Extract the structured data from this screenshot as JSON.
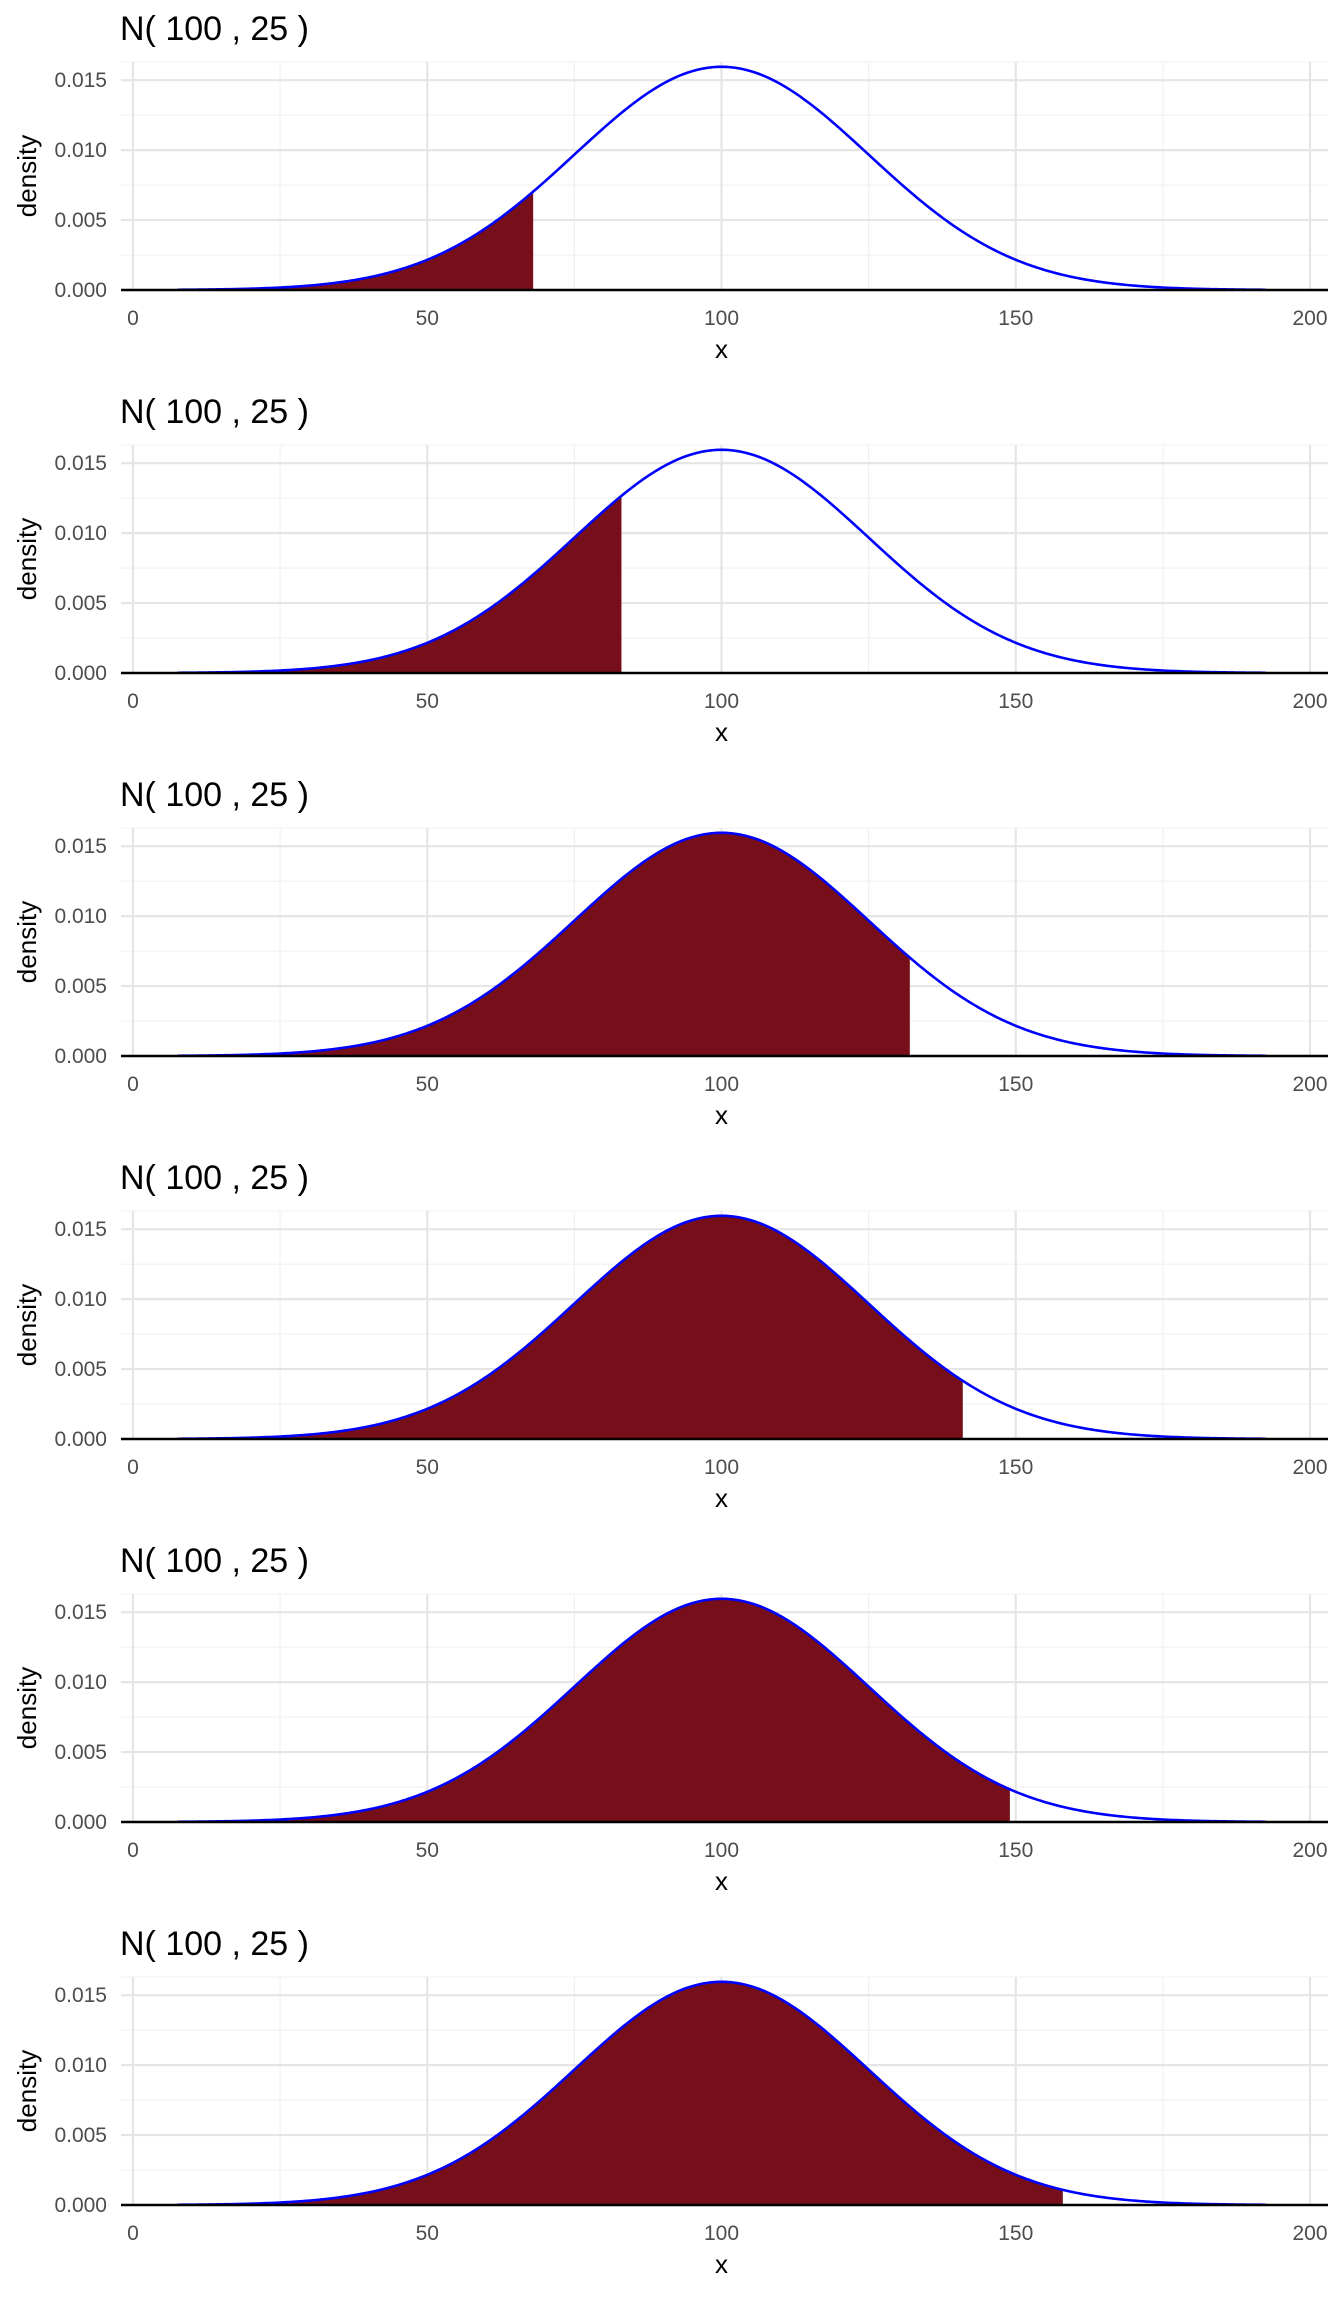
{
  "colors": {
    "curve": "#0000ff",
    "fill": "#760f19",
    "grid_major": "#e5e5e5",
    "grid_minor": "#f0f0f0",
    "baseline": "#000000",
    "tick_text": "#4d4d4d"
  },
  "chart_data": [
    {
      "type": "area",
      "title": "N( 100 , 25 )",
      "xlabel": "x",
      "ylabel": "density",
      "distribution": "normal",
      "mean": 100,
      "sd": 25,
      "curve_x_range": [
        7.5,
        192.5
      ],
      "shaded_x_range": [
        7.5,
        68
      ],
      "xlim": [
        0,
        203
      ],
      "ylim": [
        0,
        0.0163
      ],
      "xticks": [
        0,
        50,
        100,
        150,
        200
      ],
      "xtick_labels": [
        "0",
        "50",
        "100",
        "150",
        "200"
      ],
      "yticks": [
        0,
        0.005,
        0.01,
        0.015
      ],
      "ytick_labels": [
        "0.000",
        "0.005",
        "0.010",
        "0.015"
      ],
      "grid": true
    },
    {
      "type": "area",
      "title": "N( 100 , 25 )",
      "xlabel": "x",
      "ylabel": "density",
      "distribution": "normal",
      "mean": 100,
      "sd": 25,
      "curve_x_range": [
        7.5,
        192.5
      ],
      "shaded_x_range": [
        7.5,
        83
      ],
      "xlim": [
        0,
        203
      ],
      "ylim": [
        0,
        0.0163
      ],
      "xticks": [
        0,
        50,
        100,
        150,
        200
      ],
      "xtick_labels": [
        "0",
        "50",
        "100",
        "150",
        "200"
      ],
      "yticks": [
        0,
        0.005,
        0.01,
        0.015
      ],
      "ytick_labels": [
        "0.000",
        "0.005",
        "0.010",
        "0.015"
      ],
      "grid": true
    },
    {
      "type": "area",
      "title": "N( 100 , 25 )",
      "xlabel": "x",
      "ylabel": "density",
      "distribution": "normal",
      "mean": 100,
      "sd": 25,
      "curve_x_range": [
        7.5,
        192.5
      ],
      "shaded_x_range": [
        7.5,
        132
      ],
      "xlim": [
        0,
        203
      ],
      "ylim": [
        0,
        0.0163
      ],
      "xticks": [
        0,
        50,
        100,
        150,
        200
      ],
      "xtick_labels": [
        "0",
        "50",
        "100",
        "150",
        "200"
      ],
      "yticks": [
        0,
        0.005,
        0.01,
        0.015
      ],
      "ytick_labels": [
        "0.000",
        "0.005",
        "0.010",
        "0.015"
      ],
      "grid": true
    },
    {
      "type": "area",
      "title": "N( 100 , 25 )",
      "xlabel": "x",
      "ylabel": "density",
      "distribution": "normal",
      "mean": 100,
      "sd": 25,
      "curve_x_range": [
        7.5,
        192.5
      ],
      "shaded_x_range": [
        7.5,
        141
      ],
      "xlim": [
        0,
        203
      ],
      "ylim": [
        0,
        0.0163
      ],
      "xticks": [
        0,
        50,
        100,
        150,
        200
      ],
      "xtick_labels": [
        "0",
        "50",
        "100",
        "150",
        "200"
      ],
      "yticks": [
        0,
        0.005,
        0.01,
        0.015
      ],
      "ytick_labels": [
        "0.000",
        "0.005",
        "0.010",
        "0.015"
      ],
      "grid": true
    },
    {
      "type": "area",
      "title": "N( 100 , 25 )",
      "xlabel": "x",
      "ylabel": "density",
      "distribution": "normal",
      "mean": 100,
      "sd": 25,
      "curve_x_range": [
        7.5,
        192.5
      ],
      "shaded_x_range": [
        7.5,
        149
      ],
      "xlim": [
        0,
        203
      ],
      "ylim": [
        0,
        0.0163
      ],
      "xticks": [
        0,
        50,
        100,
        150,
        200
      ],
      "xtick_labels": [
        "0",
        "50",
        "100",
        "150",
        "200"
      ],
      "yticks": [
        0,
        0.005,
        0.01,
        0.015
      ],
      "ytick_labels": [
        "0.000",
        "0.005",
        "0.010",
        "0.015"
      ],
      "grid": true
    },
    {
      "type": "area",
      "title": "N( 100 , 25 )",
      "xlabel": "x",
      "ylabel": "density",
      "distribution": "normal",
      "mean": 100,
      "sd": 25,
      "curve_x_range": [
        7.5,
        192.5
      ],
      "shaded_x_range": [
        7.5,
        158
      ],
      "xlim": [
        0,
        203
      ],
      "ylim": [
        0,
        0.0163
      ],
      "xticks": [
        0,
        50,
        100,
        150,
        200
      ],
      "xtick_labels": [
        "0",
        "50",
        "100",
        "150",
        "200"
      ],
      "yticks": [
        0,
        0.005,
        0.01,
        0.015
      ],
      "ytick_labels": [
        "0.000",
        "0.005",
        "0.010",
        "0.015"
      ],
      "grid": true
    }
  ]
}
